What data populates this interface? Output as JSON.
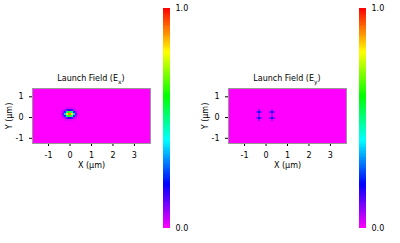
{
  "chart_data": [
    {
      "type": "heatmap",
      "title": "Launch Field (Ex)",
      "xlabel": "X (μm)",
      "ylabel": "Y (μm)",
      "xlim": [
        -1.75,
        3.75
      ],
      "xticks": [
        -1,
        0,
        1,
        2,
        3
      ],
      "ylim": [
        -1.25,
        1.4
      ],
      "yticks": [
        -1,
        0,
        1
      ],
      "cells": {
        "x": [
          -0.4,
          -0.3,
          -0.2,
          -0.1,
          0,
          0.1,
          0.2,
          0.3,
          0.4
        ],
        "y": [
          -0.15,
          -0.05,
          0.05,
          0.15,
          0.25,
          0.35,
          0.45
        ],
        "z": [
          [
            0,
            0,
            0.01,
            0.02,
            0.02,
            0.02,
            0.01,
            0,
            0
          ],
          [
            0,
            0.02,
            0.06,
            0.13,
            0.17,
            0.13,
            0.06,
            0.02,
            0
          ],
          [
            0.01,
            0.06,
            0.24,
            0.5,
            0.64,
            0.5,
            0.24,
            0.06,
            0.01
          ],
          [
            0.02,
            0.1,
            0.37,
            0.78,
            0.9,
            0.78,
            0.37,
            0.1,
            0.02
          ],
          [
            0.01,
            0.06,
            0.24,
            0.5,
            0.64,
            0.5,
            0.24,
            0.06,
            0.01
          ],
          [
            0,
            0.02,
            0.06,
            0.13,
            0.17,
            0.13,
            0.06,
            0.02,
            0
          ],
          [
            0,
            0,
            0.01,
            0.02,
            0.02,
            0.02,
            0.01,
            0,
            0
          ]
        ]
      },
      "colorbar": {
        "range": [
          0,
          1
        ],
        "ticks": [
          {
            "value": 0,
            "label": "0.0"
          },
          {
            "value": 1,
            "label": "1.0"
          }
        ]
      }
    },
    {
      "type": "heatmap",
      "title": "Launch Field (Ey)",
      "xlabel": "X (μm)",
      "ylabel": "Y (μm)",
      "xlim": [
        -1.75,
        3.75
      ],
      "xticks": [
        -1,
        0,
        1,
        2,
        3
      ],
      "ylim": [
        -1.25,
        1.4
      ],
      "yticks": [
        -1,
        0,
        1
      ],
      "cells": {
        "x": [
          -0.4,
          -0.3,
          -0.2,
          -0.1,
          0,
          0.1,
          0.2,
          0.3,
          0.4
        ],
        "y": [
          -0.15,
          -0.05,
          0.05,
          0.15,
          0.25,
          0.35
        ],
        "z": [
          [
            0,
            0.08,
            0,
            0,
            0,
            0,
            0,
            0.08,
            0
          ],
          [
            0.08,
            0.22,
            0.08,
            0,
            0,
            0,
            0.08,
            0.22,
            0.08
          ],
          [
            0,
            0.08,
            0,
            0,
            0,
            0,
            0,
            0.08,
            0
          ],
          [
            0,
            0.08,
            0,
            0,
            0,
            0,
            0,
            0.08,
            0
          ],
          [
            0.08,
            0.22,
            0.08,
            0,
            0,
            0,
            0.08,
            0.22,
            0.08
          ],
          [
            0,
            0.08,
            0,
            0,
            0,
            0,
            0,
            0.08,
            0
          ]
        ]
      },
      "colorbar": {
        "range": [
          0,
          1
        ],
        "ticks": [
          {
            "value": 0,
            "label": "0.0"
          },
          {
            "value": 1,
            "label": "1.0"
          }
        ]
      }
    }
  ]
}
